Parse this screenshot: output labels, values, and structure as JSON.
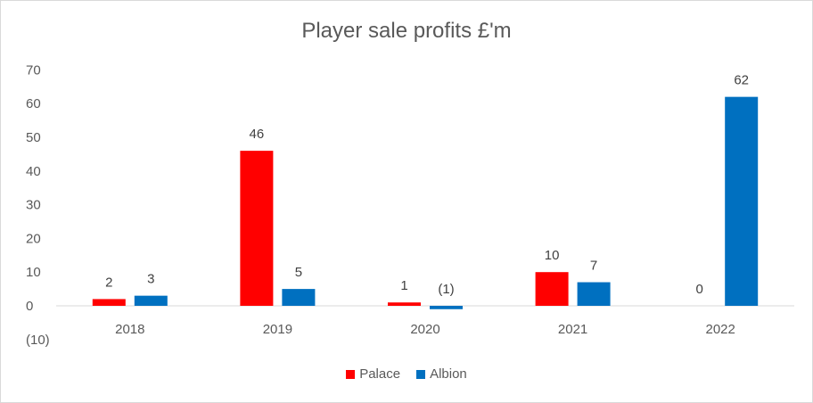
{
  "chart_data": {
    "type": "bar",
    "title": "Player sale profits £'m",
    "categories": [
      "2018",
      "2019",
      "2020",
      "2021",
      "2022"
    ],
    "series": [
      {
        "name": "Palace",
        "color": "#ff0000",
        "values": [
          2,
          46,
          1,
          10,
          0
        ],
        "labels": [
          "2",
          "46",
          "1",
          "10",
          "0"
        ]
      },
      {
        "name": "Albion",
        "color": "#0070c0",
        "values": [
          3,
          5,
          -1,
          7,
          62
        ],
        "labels": [
          "3",
          "5",
          "(1)",
          "7",
          "62"
        ]
      }
    ],
    "y_ticks": [
      {
        "value": 70,
        "label": "70"
      },
      {
        "value": 60,
        "label": "60"
      },
      {
        "value": 50,
        "label": "50"
      },
      {
        "value": 40,
        "label": "40"
      },
      {
        "value": 30,
        "label": "30"
      },
      {
        "value": 20,
        "label": "20"
      },
      {
        "value": 10,
        "label": "10"
      },
      {
        "value": 0,
        "label": "0"
      },
      {
        "value": -10,
        "label": "(10)"
      }
    ],
    "ylim": [
      -10,
      70
    ],
    "grid": false,
    "legend_position": "bottom"
  }
}
